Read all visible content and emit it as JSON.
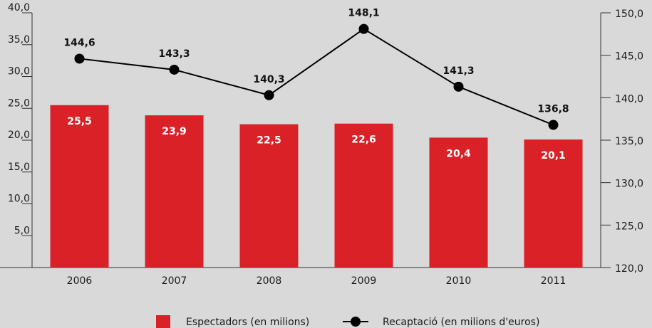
{
  "chart_data": {
    "type": "bar",
    "categories": [
      "2006",
      "2007",
      "2008",
      "2009",
      "2010",
      "2011"
    ],
    "series": [
      {
        "name": "Espectadors (en milions)",
        "type": "bar",
        "axis": "left",
        "values": [
          25.5,
          23.9,
          22.5,
          22.6,
          20.4,
          20.1
        ],
        "labels": [
          "25,5",
          "23,9",
          "22,5",
          "22,6",
          "20,4",
          "20,1"
        ],
        "color": "#db2128"
      },
      {
        "name": "Recaptació (en milions d'euros)",
        "type": "line",
        "axis": "right",
        "values": [
          144.6,
          143.3,
          140.3,
          148.1,
          141.3,
          136.8
        ],
        "labels": [
          "144,6",
          "143,3",
          "140,3",
          "148,1",
          "141,3",
          "136,8"
        ],
        "color": "#000000"
      }
    ],
    "y_left": {
      "lim": [
        0,
        40
      ],
      "ticks": [
        5,
        10,
        15,
        20,
        25,
        30,
        35,
        40
      ],
      "tick_labels": [
        "5,0",
        "10,0",
        "15,0",
        "20,0",
        "25,0",
        "30,0",
        "35,0",
        "40,0"
      ]
    },
    "y_right": {
      "lim": [
        120,
        150
      ],
      "ticks": [
        120,
        125,
        130,
        135,
        140,
        145,
        150
      ],
      "tick_labels": [
        "120,0",
        "125,0",
        "130,0",
        "135,0",
        "140,0",
        "145,0",
        "150,0"
      ]
    },
    "grid": false,
    "legend_position": "bottom-center",
    "background": "#d9d9d9"
  }
}
